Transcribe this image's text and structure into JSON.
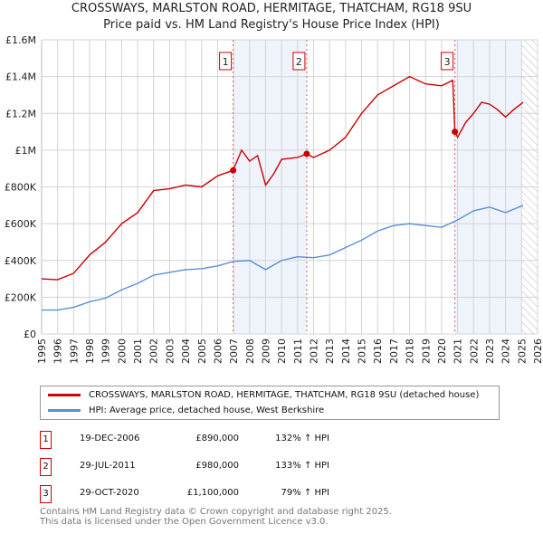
{
  "chart_data": {
    "type": "line",
    "title": "CROSSWAYS, MARLSTON ROAD, HERMITAGE, THATCHAM, RG18 9SU",
    "subtitle": "Price paid vs. HM Land Registry's House Price Index (HPI)",
    "xlim": [
      1995,
      2026
    ],
    "ylim": [
      0,
      1600000
    ],
    "x_ticks": [
      "1995",
      "1996",
      "1997",
      "1998",
      "1999",
      "2000",
      "2001",
      "2002",
      "2003",
      "2004",
      "2005",
      "2006",
      "2007",
      "2008",
      "2009",
      "2010",
      "2011",
      "2012",
      "2013",
      "2014",
      "2015",
      "2016",
      "2017",
      "2018",
      "2019",
      "2020",
      "2021",
      "2022",
      "2023",
      "2024",
      "2025",
      "2026"
    ],
    "y_ticks": [
      {
        "v": 0,
        "label": "£0"
      },
      {
        "v": 200000,
        "label": "£200K"
      },
      {
        "v": 400000,
        "label": "£400K"
      },
      {
        "v": 600000,
        "label": "£600K"
      },
      {
        "v": 800000,
        "label": "£800K"
      },
      {
        "v": 1000000,
        "label": "£1M"
      },
      {
        "v": 1200000,
        "label": "£1.2M"
      },
      {
        "v": 1400000,
        "label": "£1.4M"
      },
      {
        "v": 1600000,
        "label": "£1.6M"
      }
    ],
    "grid": true,
    "shaded_ranges": [
      [
        2006.97,
        2011.57
      ],
      [
        2020.83,
        2025.0
      ]
    ],
    "forecast_start": 2025.0,
    "series": [
      {
        "name": "CROSSWAYS, MARLSTON ROAD, HERMITAGE, THATCHAM, RG18 9SU (detached house)",
        "color": "#cc0000",
        "x": [
          1995,
          1996,
          1997,
          1998,
          1999,
          2000,
          2001,
          2002,
          2003,
          2004,
          2005,
          2006,
          2006.97,
          2007.5,
          2008,
          2008.5,
          2009,
          2009.5,
          2010,
          2011,
          2011.57,
          2012,
          2013,
          2014,
          2015,
          2016,
          2017,
          2018,
          2019,
          2020,
          2020.7,
          2020.83,
          2021,
          2021.5,
          2022,
          2022.5,
          2023,
          2023.5,
          2024,
          2024.5,
          2025.1
        ],
        "values": [
          300000,
          295000,
          330000,
          430000,
          500000,
          600000,
          660000,
          780000,
          790000,
          810000,
          800000,
          860000,
          890000,
          1000000,
          940000,
          970000,
          810000,
          870000,
          950000,
          960000,
          980000,
          960000,
          1000000,
          1070000,
          1200000,
          1300000,
          1350000,
          1400000,
          1360000,
          1350000,
          1380000,
          1100000,
          1070000,
          1150000,
          1200000,
          1260000,
          1250000,
          1220000,
          1180000,
          1220000,
          1260000
        ]
      },
      {
        "name": "HPI: Average price, detached house, West Berkshire",
        "color": "#5b8fd6",
        "x": [
          1995,
          1996,
          1997,
          1998,
          1999,
          2000,
          2001,
          2002,
          2003,
          2004,
          2005,
          2006,
          2007,
          2008,
          2009,
          2010,
          2011,
          2012,
          2013,
          2014,
          2015,
          2016,
          2017,
          2018,
          2019,
          2020,
          2021,
          2022,
          2023,
          2024,
          2025.1
        ],
        "values": [
          130000,
          130000,
          145000,
          175000,
          195000,
          240000,
          275000,
          320000,
          335000,
          350000,
          355000,
          370000,
          395000,
          400000,
          350000,
          400000,
          420000,
          415000,
          430000,
          470000,
          510000,
          560000,
          590000,
          600000,
          590000,
          580000,
          620000,
          670000,
          690000,
          660000,
          700000
        ]
      }
    ],
    "sales": [
      {
        "id": "1",
        "x": 2006.97,
        "value": 890000,
        "date": "19-DEC-2006",
        "price": "£890,000",
        "hpi": "132% ↑ HPI"
      },
      {
        "id": "2",
        "x": 2011.57,
        "value": 980000,
        "date": "29-JUL-2011",
        "price": "£980,000",
        "hpi": "133% ↑ HPI"
      },
      {
        "id": "3",
        "x": 2020.83,
        "value": 1100000,
        "date": "29-OCT-2020",
        "price": "£1,100,000",
        "hpi": "79% ↑ HPI"
      }
    ]
  },
  "legend": {
    "red": "CROSSWAYS, MARLSTON ROAD, HERMITAGE, THATCHAM, RG18 9SU (detached house)",
    "blue": "HPI: Average price, detached house, West Berkshire"
  },
  "footer": {
    "line1": "Contains HM Land Registry data © Crown copyright and database right 2025.",
    "line2": "This data is licensed under the Open Government Licence v3.0."
  }
}
